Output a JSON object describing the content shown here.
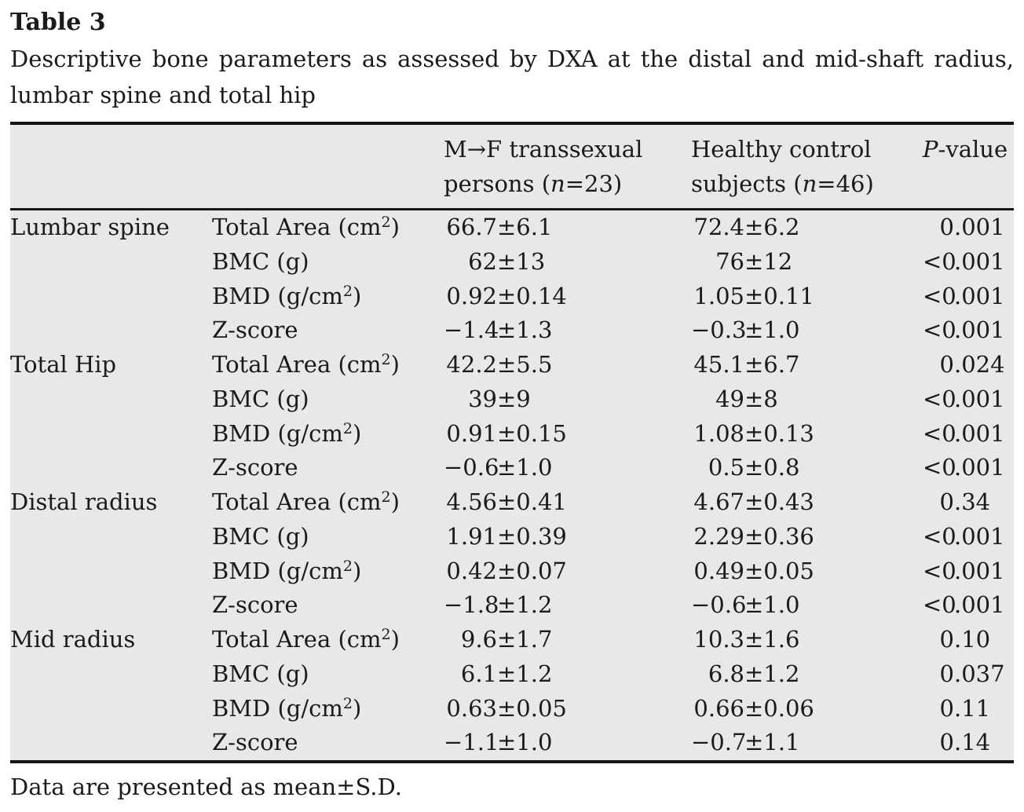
{
  "title": "Table 3",
  "caption_line1": "Descriptive bone parameters as assessed by DXA at the distal and mid-shaft radius,",
  "caption_line2": "lumbar spine and total hip",
  "colors": {
    "table_bg": "#e8e8e8",
    "rule": "#151515",
    "text": "#1b1b1b"
  },
  "table": {
    "col_headers": [
      "",
      "",
      "M→F transsexual persons (n=23)",
      "Healthy control subjects (n=46)",
      "P-value"
    ],
    "groups": [
      {
        "site": "Lumbar spine",
        "rows": [
          {
            "param": "Total Area (cm²)",
            "v1": "66.7±6.1",
            "v2": "72.4±6.2",
            "p": "0.001"
          },
          {
            "param": "BMC (g)",
            "v1": "62±13",
            "v2": "76±12",
            "p": "<0.001"
          },
          {
            "param": "BMD (g/cm²)",
            "v1": "0.92±0.14",
            "v2": "1.05±0.11",
            "p": "<0.001"
          },
          {
            "param": "Z-score",
            "v1": "−1.4±1.3",
            "v2": "−0.3±1.0",
            "p": "<0.001"
          }
        ]
      },
      {
        "site": "Total Hip",
        "rows": [
          {
            "param": "Total Area (cm²)",
            "v1": "42.2±5.5",
            "v2": "45.1±6.7",
            "p": "0.024"
          },
          {
            "param": "BMC (g)",
            "v1": "39±9",
            "v2": "49±8",
            "p": "<0.001"
          },
          {
            "param": "BMD (g/cm²)",
            "v1": "0.91±0.15",
            "v2": "1.08±0.13",
            "p": "<0.001"
          },
          {
            "param": "Z-score",
            "v1": "−0.6±1.0",
            "v2": "0.5±0.8",
            "p": "<0.001"
          }
        ]
      },
      {
        "site": "Distal radius",
        "rows": [
          {
            "param": "Total Area (cm²)",
            "v1": "4.56±0.41",
            "v2": "4.67±0.43",
            "p": "0.34"
          },
          {
            "param": "BMC (g)",
            "v1": "1.91±0.39",
            "v2": "2.29±0.36",
            "p": "<0.001"
          },
          {
            "param": "BMD (g/cm²)",
            "v1": "0.42±0.07",
            "v2": "0.49±0.05",
            "p": "<0.001"
          },
          {
            "param": "Z-score",
            "v1": "−1.8±1.2",
            "v2": "−0.6±1.0",
            "p": "<0.001"
          }
        ]
      },
      {
        "site": "Mid radius",
        "rows": [
          {
            "param": "Total Area (cm²)",
            "v1": "9.6±1.7",
            "v2": "10.3±1.6",
            "p": "0.10"
          },
          {
            "param": "BMC (g)",
            "v1": "6.1±1.2",
            "v2": "6.8±1.2",
            "p": "0.037"
          },
          {
            "param": "BMD (g/cm²)",
            "v1": "0.63±0.05",
            "v2": "0.66±0.06",
            "p": "0.11"
          },
          {
            "param": "Z-score",
            "v1": "−1.1±1.0",
            "v2": "−0.7±1.1",
            "p": "0.14"
          }
        ]
      }
    ]
  },
  "footnote": "Data are presented as mean±S.D."
}
